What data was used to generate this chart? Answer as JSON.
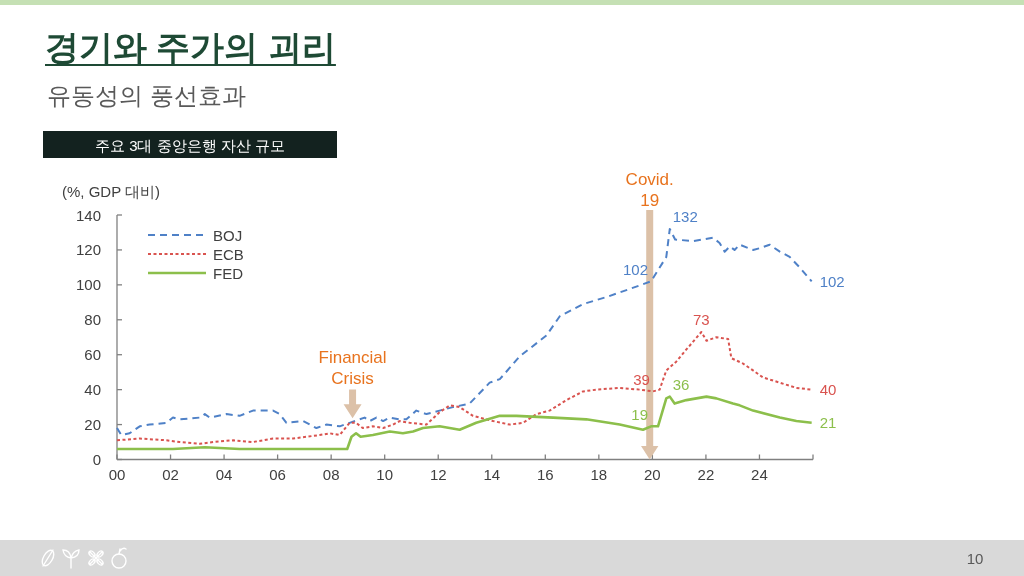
{
  "chart_data": {
    "type": "line",
    "title": "경기와 주가의 괴리",
    "subtitle": "유동성의 풍선효과",
    "ylabel": "(%, GDP 대비)",
    "annotations": [
      "주요 3대 중앙은행 자산 규모",
      {
        "text": "Financial\nCrisis",
        "x": 2008.8,
        "y": 23.6
      },
      "10"
    ],
    "ref_lines": [
      {
        "axis": "x",
        "value": 2019.9,
        "label": "Covid.\n19",
        "color": "#dcc1a8"
      }
    ],
    "xlim": [
      2000,
      2026
    ],
    "ylim": [
      0,
      140
    ],
    "xticks": [
      {
        "value": 2000,
        "label": "00"
      },
      {
        "value": 2002,
        "label": "02"
      },
      {
        "value": 2004,
        "label": "04"
      },
      {
        "value": 2006,
        "label": "06"
      },
      {
        "value": 2008,
        "label": "08"
      },
      {
        "value": 2010,
        "label": "10"
      },
      {
        "value": 2012,
        "label": "12"
      },
      {
        "value": 2014,
        "label": "14"
      },
      {
        "value": 2016,
        "label": "16"
      },
      {
        "value": 2018,
        "label": "18"
      },
      {
        "value": 2020,
        "label": "20"
      },
      {
        "value": 2022,
        "label": "22"
      },
      {
        "value": 2024,
        "label": "24"
      },
      {
        "value": 2026,
        "label": null
      }
    ],
    "yticks": [
      0,
      20,
      40,
      60,
      80,
      100,
      120,
      140
    ],
    "legend": "top left",
    "series": [
      {
        "name": "BOJ",
        "color": "#4f81c7",
        "line_style": "dashed",
        "x": [
          2000,
          2000.16,
          2000.47,
          2000.85,
          2001.22,
          2001.85,
          2002.09,
          2002.34,
          2003.09,
          2003.28,
          2003.46,
          2004.09,
          2004.58,
          2005.08,
          2005.83,
          2006.08,
          2006.33,
          2006.95,
          2007.45,
          2007.82,
          2008.32,
          2008.69,
          2009.25,
          2009.44,
          2009.69,
          2009.94,
          2010.19,
          2010.56,
          2010.81,
          2011.18,
          2011.56,
          2012.05,
          2012.55,
          2013.17,
          2013.92,
          2014.3,
          2015.04,
          2016.04,
          2016.54,
          2017.41,
          2018.28,
          2019.03,
          2019.95,
          2020.52,
          2020.65,
          2020.85,
          2021.52,
          2021.89,
          2022.26,
          2022.51,
          2022.7,
          2022.89,
          2023.07,
          2023.26,
          2023.76,
          2024.01,
          2024.38,
          2024.76,
          2025.13,
          2025.5,
          2025.95
        ],
        "values": [
          18,
          14,
          15,
          19,
          20,
          21,
          24,
          23,
          24,
          26,
          24,
          26,
          25,
          28,
          28,
          26,
          21,
          22,
          18,
          20,
          19,
          21,
          24,
          22,
          24,
          22,
          24,
          23,
          23,
          28,
          26,
          28,
          30,
          32,
          44,
          46,
          59,
          71,
          82,
          89,
          93,
          97,
          102,
          116,
          132,
          126,
          125,
          126,
          127,
          124,
          119,
          122,
          120,
          123,
          120,
          121,
          123,
          119,
          116,
          110,
          102
        ],
        "value_labels": [
          null,
          null,
          null,
          null,
          null,
          null,
          null,
          null,
          null,
          null,
          null,
          null,
          null,
          null,
          null,
          null,
          null,
          null,
          null,
          null,
          null,
          null,
          null,
          null,
          null,
          null,
          null,
          null,
          null,
          null,
          null,
          null,
          null,
          null,
          null,
          null,
          null,
          null,
          null,
          null,
          null,
          null,
          "102",
          null,
          "132",
          null,
          null,
          null,
          null,
          null,
          null,
          null,
          null,
          null,
          null,
          null,
          null,
          null,
          null,
          null,
          "102"
        ]
      },
      {
        "name": "ECB",
        "color": "#d9534f",
        "line_style": "dotted",
        "x": [
          2000,
          2000.85,
          2001.85,
          2002.34,
          2003.09,
          2003.59,
          2004.34,
          2005.08,
          2005.83,
          2006.58,
          2007.57,
          2007.95,
          2008.32,
          2008.69,
          2008.93,
          2009.18,
          2009.56,
          2009.94,
          2010.31,
          2010.56,
          2010.93,
          2011.56,
          2012.05,
          2012.43,
          2012.8,
          2013.3,
          2014.05,
          2014.67,
          2015.17,
          2015.67,
          2016.16,
          2016.79,
          2017.41,
          2017.91,
          2018.78,
          2019.53,
          2020.02,
          2020.27,
          2020.52,
          2020.89,
          2021.27,
          2021.83,
          2022.02,
          2022.39,
          2022.83,
          2022.95,
          2023.38,
          2023.76,
          2024.13,
          2024.76,
          2025.38,
          2025.95
        ],
        "values": [
          11,
          12,
          11,
          10,
          9,
          10,
          11,
          10,
          12,
          12,
          14,
          15,
          14,
          21,
          21,
          18,
          19,
          18,
          20,
          22,
          21,
          20,
          27,
          31,
          30,
          25,
          22,
          20,
          21,
          26,
          28,
          34,
          39,
          40,
          41,
          40,
          39,
          40,
          51,
          56,
          63,
          73,
          68,
          70,
          69,
          58,
          55,
          51,
          47,
          44,
          41,
          40
        ],
        "value_labels": [
          null,
          null,
          null,
          null,
          null,
          null,
          null,
          null,
          null,
          null,
          null,
          null,
          null,
          null,
          null,
          null,
          null,
          null,
          null,
          null,
          null,
          null,
          null,
          null,
          null,
          null,
          null,
          null,
          null,
          null,
          null,
          null,
          null,
          null,
          null,
          null,
          "39",
          null,
          null,
          null,
          null,
          "73",
          null,
          null,
          null,
          null,
          null,
          null,
          null,
          null,
          null,
          "40"
        ]
      },
      {
        "name": "FED",
        "color": "#8cbf4b",
        "line_style": "solid",
        "x": [
          2000,
          2002.09,
          2003.28,
          2004.58,
          2005.83,
          2007,
          2008.6,
          2008.76,
          2008.93,
          2009.1,
          2009.56,
          2010.19,
          2010.68,
          2011.06,
          2011.43,
          2012.05,
          2012.8,
          2013.42,
          2014.3,
          2014.92,
          2016.29,
          2017.53,
          2018.78,
          2019.65,
          2019.95,
          2020.21,
          2020.52,
          2020.65,
          2020.83,
          2021.27,
          2022.02,
          2022.39,
          2023.01,
          2023.26,
          2023.76,
          2024.76,
          2025.38,
          2025.95
        ],
        "values": [
          6,
          6,
          7,
          6,
          6,
          6,
          6,
          13,
          15,
          13,
          14,
          16,
          15,
          16,
          18,
          19,
          17,
          21,
          25,
          25,
          24,
          23,
          20,
          17,
          19,
          19,
          35,
          36,
          32,
          34,
          36,
          35,
          32,
          31,
          28,
          24,
          22,
          21
        ],
        "value_labels": [
          null,
          null,
          null,
          null,
          null,
          null,
          null,
          null,
          null,
          null,
          null,
          null,
          null,
          null,
          null,
          null,
          null,
          null,
          null,
          null,
          null,
          null,
          null,
          null,
          "19",
          null,
          null,
          "36",
          null,
          null,
          null,
          null,
          null,
          null,
          null,
          null,
          null,
          "21"
        ]
      }
    ]
  }
}
